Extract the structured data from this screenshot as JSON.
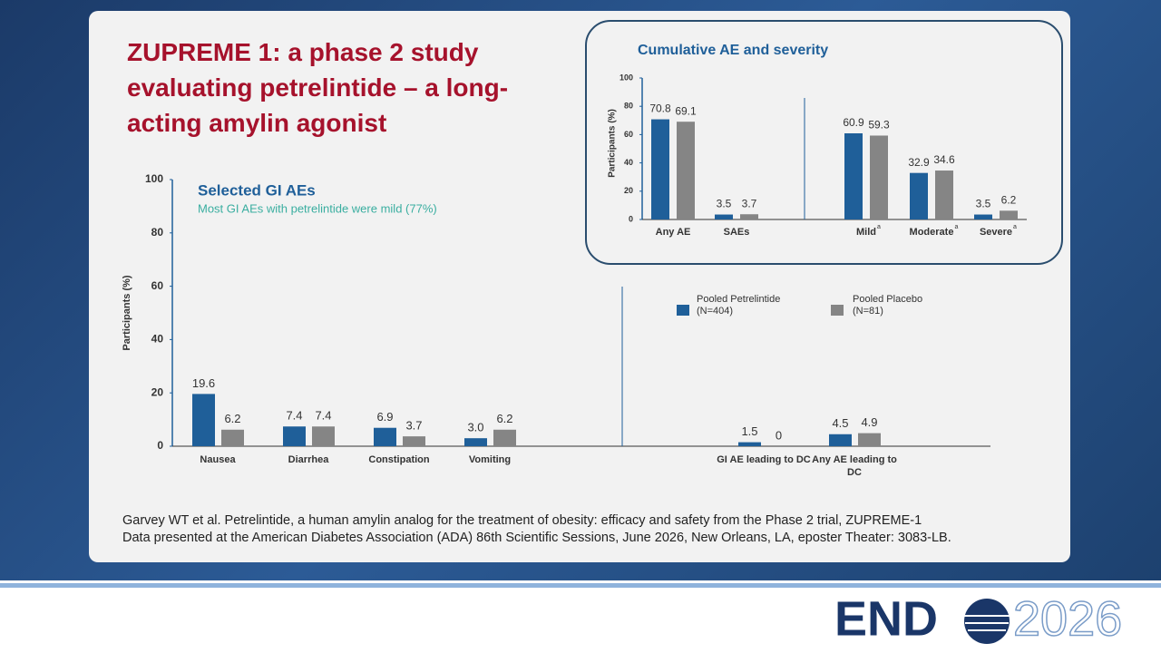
{
  "slide_title": "ZUPREME 1: a phase 2 study evaluating petrelintide – a long-acting amylin agonist",
  "chart_data": [
    {
      "type": "bar",
      "title": "Selected GI AEs",
      "subtitle": "Most GI AEs with petrelintide were mild (77%)",
      "y_label": "Participants (%)",
      "categories": [
        "Nausea",
        "Diarrhea",
        "Constipation",
        "Vomiting",
        "GI AE leading to DC",
        "Any AE leading to DC"
      ],
      "series": [
        {
          "name": "Pooled Petrelintide (N=404)",
          "color": "#1f5f99",
          "values": [
            19.6,
            7.4,
            6.9,
            3.0,
            1.5,
            4.5
          ],
          "value_labels": [
            "19.6",
            "7.4",
            "6.9",
            "3.0",
            "1.5",
            "4.5"
          ]
        },
        {
          "name": "Pooled Placebo (N=81)",
          "color": "#858585",
          "values": [
            6.2,
            7.4,
            3.7,
            6.2,
            0,
            4.9
          ]
        }
      ],
      "ylim": [
        0,
        100
      ],
      "yticks": [
        0,
        20,
        40,
        60,
        80,
        100
      ]
    },
    {
      "type": "bar",
      "title": "Cumulative AE and severity",
      "y_label": "Participants (%)",
      "categories": [
        "Any AE",
        "SAEs",
        "Mild",
        "Moderate",
        "Severe"
      ],
      "category_notes": [
        null,
        null,
        "a",
        "a",
        "a"
      ],
      "series": [
        {
          "name": "Pooled Petrelintide (N=404)",
          "color": "#1f5f99",
          "values": [
            70.8,
            3.5,
            60.9,
            32.9,
            3.5
          ]
        },
        {
          "name": "Pooled Placebo (N=81)",
          "color": "#858585",
          "values": [
            69.1,
            3.7,
            59.3,
            34.6,
            6.2
          ]
        }
      ],
      "ylim": [
        0,
        100
      ],
      "yticks": [
        0,
        20,
        40,
        60,
        80,
        100
      ]
    }
  ],
  "citation": [
    "Garvey WT et al. Petrelintide, a human amylin analog for the treatment of obesity: efficacy and safety from the Phase 2 trial, ZUPREME-1",
    "Data presented at the American Diabetes Association (ADA) 86th Scientific Sessions, June 2026, New Orleans, LA, eposter Theater: 3083-LB."
  ],
  "logo": {
    "left": "END",
    "right": "2026"
  }
}
